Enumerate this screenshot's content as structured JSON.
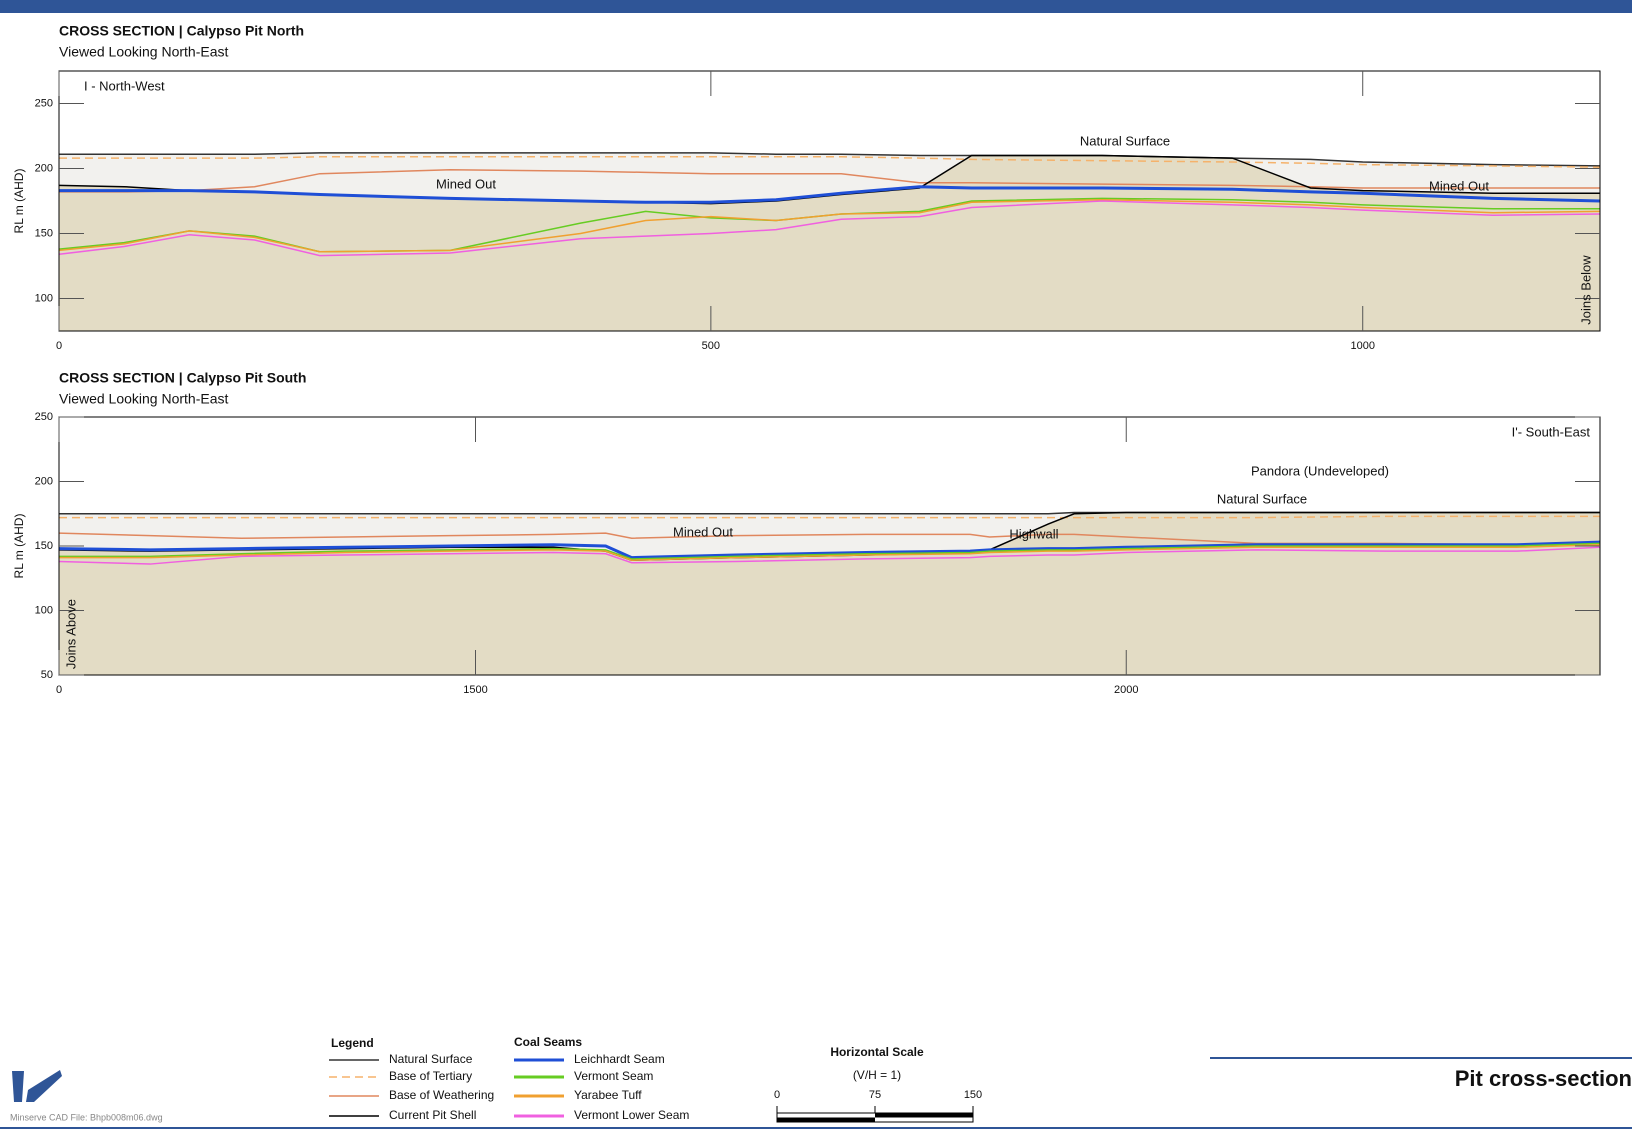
{
  "chart_data": [
    {
      "type": "line",
      "title": "CROSS SECTION  |  Calypso Pit North",
      "subtitle": "Viewed Looking North-East",
      "y_label": "RL m (AHD)",
      "x": [
        0,
        50,
        100,
        150,
        200,
        300,
        400,
        450,
        500,
        550,
        600,
        660,
        700,
        800,
        900,
        960,
        1000,
        1100,
        1182
      ],
      "xlim": [
        0,
        1182
      ],
      "ylim": [
        75,
        275
      ],
      "xticks": [
        0,
        500,
        1000
      ],
      "yticks": [
        100,
        150,
        200,
        250
      ],
      "series": [
        {
          "name": "Natural Surface",
          "color": "#333333",
          "values": [
            211,
            211,
            211,
            211,
            212,
            212,
            212,
            212,
            212,
            211,
            211,
            210,
            210,
            210,
            208,
            207,
            205,
            203,
            202
          ]
        },
        {
          "name": "Base of Tertiary",
          "color": "#f5b26b",
          "dashed": true,
          "values": [
            208,
            208,
            208,
            208,
            209,
            209,
            209,
            209,
            209,
            209,
            209,
            208,
            207,
            206,
            205,
            204,
            203,
            202,
            201
          ]
        },
        {
          "name": "Base of Weathering",
          "color": "#e0875e",
          "values": [
            182,
            182,
            183,
            186,
            196,
            199,
            198,
            197,
            196,
            196,
            196,
            189,
            189,
            188,
            187,
            186,
            185,
            185,
            185
          ]
        },
        {
          "name": "Current Pit Shell",
          "color": "#000000",
          "values": [
            187,
            186,
            183,
            182,
            180,
            177,
            175,
            174,
            173,
            175,
            180,
            185,
            210,
            210,
            208,
            185,
            183,
            181,
            181
          ]
        },
        {
          "name": "Leichhardt Seam",
          "color": "#1f4fd6",
          "width": 3,
          "values": [
            183,
            183,
            183,
            182,
            180,
            177,
            175,
            174,
            174,
            176,
            181,
            186,
            185,
            185,
            184,
            182,
            181,
            177,
            175
          ]
        },
        {
          "name": "Vermont Seam",
          "color": "#66cc22",
          "values": [
            138,
            143,
            152,
            148,
            136,
            137,
            158,
            167,
            162,
            160,
            165,
            167,
            175,
            177,
            176,
            174,
            172,
            169,
            169
          ]
        },
        {
          "name": "Yarabee Tuff",
          "color": "#f0a030",
          "values": [
            137,
            142,
            152,
            147,
            136,
            137,
            150,
            160,
            163,
            160,
            165,
            166,
            174,
            176,
            174,
            172,
            170,
            166,
            167
          ]
        },
        {
          "name": "Vermont Lower Seam",
          "color": "#f060e0",
          "values": [
            134,
            140,
            149,
            145,
            133,
            135,
            146,
            148,
            150,
            153,
            161,
            163,
            170,
            175,
            172,
            170,
            168,
            164,
            165
          ]
        }
      ],
      "annotations": [
        "I - North-West",
        "Natural Surface",
        "Mined Out",
        "Mined Out",
        "Joins Below"
      ]
    },
    {
      "type": "line",
      "title": "CROSS SECTION  |  Calypso Pit South",
      "subtitle": "Viewed Looking North-East",
      "y_label": "RL m (AHD)",
      "x": [
        1180,
        1250,
        1320,
        1400,
        1480,
        1560,
        1600,
        1620,
        1700,
        1800,
        1880,
        1895,
        1940,
        1960,
        2000,
        2100,
        2200,
        2300,
        2364
      ],
      "xlim": [
        1180,
        2364
      ],
      "ylim": [
        50,
        250
      ],
      "xticks": [
        {
          "value": 1180,
          "label": "0"
        },
        1500,
        2000
      ],
      "yticks": [
        50,
        100,
        150,
        200,
        250
      ],
      "series": [
        {
          "color": "#333333",
          "values": [
            175,
            175,
            175,
            175,
            175,
            175,
            175,
            175,
            175,
            175,
            175,
            175,
            175,
            176,
            176,
            176,
            176,
            176,
            176
          ]
        },
        {
          "color": "#f5b26b",
          "dashed": true,
          "values": [
            172,
            172,
            172,
            172,
            172,
            172,
            172,
            172,
            172,
            172,
            172,
            172,
            172,
            172,
            172,
            172,
            173,
            173,
            173
          ]
        },
        {
          "color": "#e0875e",
          "values": [
            160,
            158,
            156,
            157,
            158,
            159,
            160,
            156,
            158,
            159,
            159,
            157,
            159,
            159,
            157,
            152,
            152,
            151,
            153
          ]
        },
        {
          "color": "#000000",
          "values": [
            147,
            146,
            147,
            148,
            149,
            149,
            146,
            139,
            141,
            143,
            145,
            147,
            167,
            175,
            176,
            176,
            176,
            176,
            176
          ]
        },
        {
          "color": "#1f4fd6",
          "width": 3,
          "values": [
            148,
            147,
            148,
            149,
            150,
            151,
            150,
            141,
            143,
            145,
            146,
            147,
            148,
            148,
            149,
            151,
            151,
            151,
            153
          ]
        },
        {
          "color": "#66cc22",
          "values": [
            142,
            142,
            144,
            146,
            147,
            148,
            147,
            140,
            142,
            144,
            145,
            146,
            147,
            147,
            148,
            150,
            150,
            150,
            152
          ]
        },
        {
          "color": "#f0a030",
          "values": [
            141,
            141,
            143,
            145,
            146,
            147,
            146,
            139,
            141,
            143,
            144,
            145,
            146,
            146,
            147,
            149,
            149,
            149,
            151
          ]
        },
        {
          "color": "#f060e0",
          "values": [
            138,
            136,
            142,
            143,
            144,
            145,
            144,
            137,
            138,
            140,
            141,
            142,
            143,
            143,
            145,
            147,
            146,
            146,
            149
          ]
        }
      ],
      "annotations": [
        "I'- South-East",
        "Pandora (Undeveloped)",
        "Natural Surface",
        "Mined Out",
        "Highwall",
        "Joins Above"
      ]
    }
  ],
  "legend": {
    "title": "Legend",
    "seams_title": "Coal Seams"
  },
  "scale_bar": {
    "title": "Horizontal Scale",
    "ratio": "(V/H = 1)",
    "ticks": [
      0,
      75,
      150
    ]
  },
  "footer": {
    "heading": "Pit cross-section",
    "file": "Minserve CAD File: Bhpb008m06.dwg"
  }
}
